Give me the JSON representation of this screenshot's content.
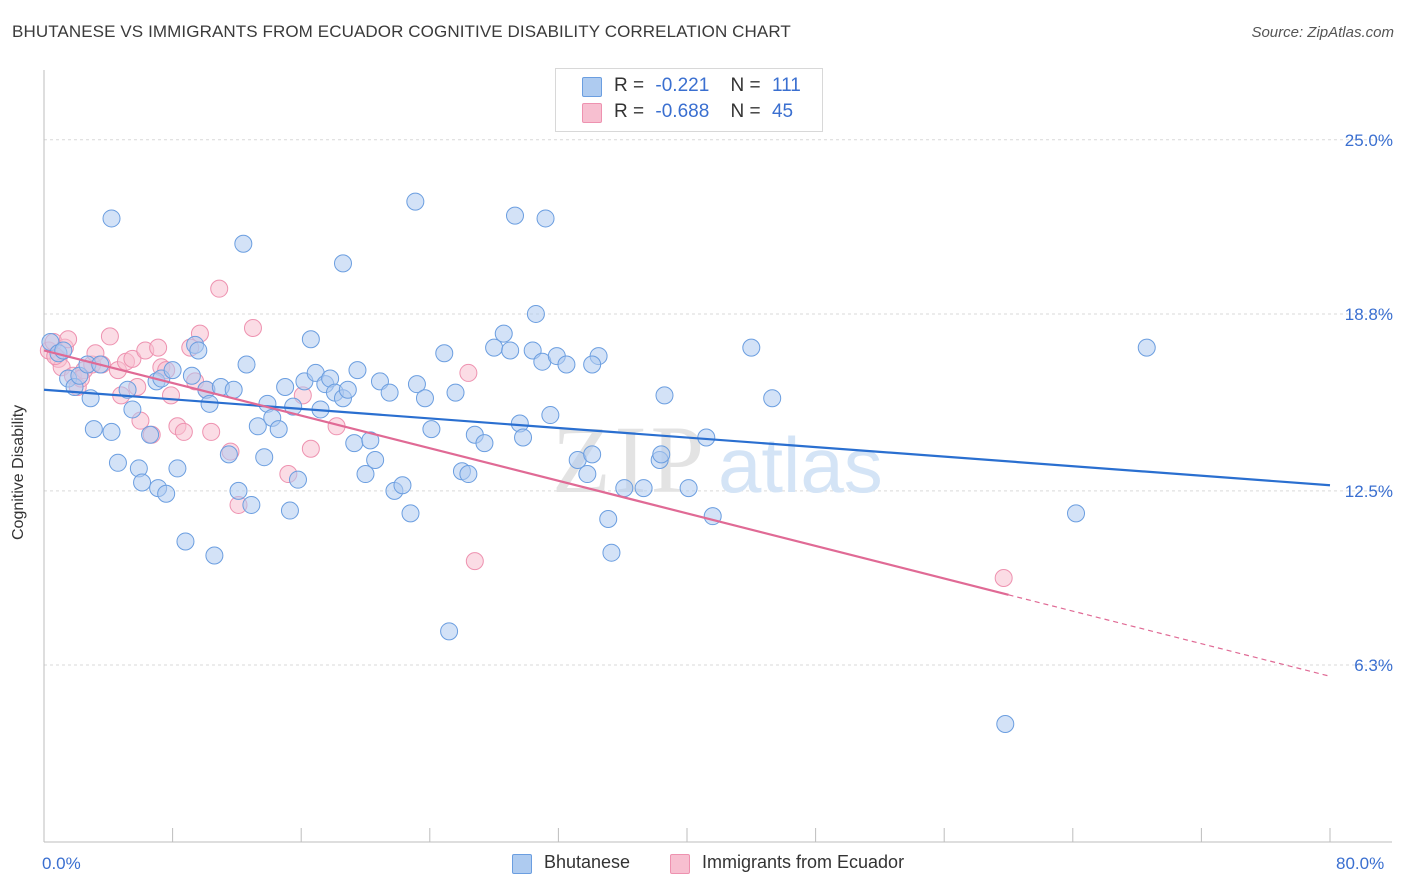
{
  "title": "BHUTANESE VS IMMIGRANTS FROM ECUADOR COGNITIVE DISABILITY CORRELATION CHART",
  "source": "Source: ZipAtlas.com",
  "watermark": {
    "zip": "ZIP",
    "atlas": "atlas"
  },
  "colors": {
    "bhutanese_fill": "#aecbf0",
    "bhutanese_stroke": "#6b9ee0",
    "bhutanese_line": "#2a6fd0",
    "ecuador_fill": "#f7bfd0",
    "ecuador_stroke": "#ee92b0",
    "ecuador_line": "#e06a95",
    "grid": "#d9d9d9",
    "tick_label": "#3a6fd0"
  },
  "legend": {
    "rows": [
      {
        "r_label": "R =",
        "r_value": "-0.221",
        "n_label": "N =",
        "n_value": "111"
      },
      {
        "r_label": "R =",
        "r_value": "-0.688",
        "n_label": "N =",
        "n_value": "45"
      }
    ]
  },
  "bottom_legend": [
    "Bhutanese",
    "Immigrants from Ecuador"
  ],
  "axes": {
    "ylabel": "Cognitive Disability",
    "x_min_label": "0.0%",
    "x_max_label": "80.0%",
    "y_tick_labels": [
      "25.0%",
      "18.8%",
      "12.5%",
      "6.3%"
    ]
  },
  "chart_data": {
    "type": "scatter",
    "title": "BHUTANESE VS IMMIGRANTS FROM ECUADOR COGNITIVE DISABILITY CORRELATION CHART",
    "xlabel": "",
    "ylabel": "Cognitive Disability",
    "xlim": [
      0,
      80
    ],
    "ylim": [
      0,
      27.2
    ],
    "y_ticks": [
      25.0,
      18.8,
      12.5,
      6.3
    ],
    "grid": true,
    "legend_position": "top-center",
    "series": [
      {
        "name": "Bhutanese",
        "r": -0.221,
        "n": 111,
        "trend": {
          "x0": 0,
          "y0": 16.1,
          "x1": 80,
          "y1": 12.7
        },
        "points": [
          [
            0.4,
            17.8
          ],
          [
            0.9,
            17.4
          ],
          [
            1.2,
            17.5
          ],
          [
            1.5,
            16.5
          ],
          [
            1.9,
            16.2
          ],
          [
            2.2,
            16.6
          ],
          [
            2.7,
            17.0
          ],
          [
            2.9,
            15.8
          ],
          [
            3.1,
            14.7
          ],
          [
            3.5,
            17.0
          ],
          [
            4.2,
            14.6
          ],
          [
            4.6,
            13.5
          ],
          [
            5.2,
            16.1
          ],
          [
            5.5,
            15.4
          ],
          [
            5.9,
            13.3
          ],
          [
            6.1,
            12.8
          ],
          [
            6.6,
            14.5
          ],
          [
            7.0,
            16.4
          ],
          [
            7.1,
            12.6
          ],
          [
            7.3,
            16.5
          ],
          [
            7.6,
            12.4
          ],
          [
            8.0,
            16.8
          ],
          [
            8.3,
            13.3
          ],
          [
            8.8,
            10.7
          ],
          [
            9.2,
            16.6
          ],
          [
            9.4,
            17.7
          ],
          [
            9.6,
            17.5
          ],
          [
            10.1,
            16.1
          ],
          [
            10.3,
            15.6
          ],
          [
            10.6,
            10.2
          ],
          [
            11.0,
            16.2
          ],
          [
            11.5,
            13.8
          ],
          [
            11.8,
            16.1
          ],
          [
            12.1,
            12.5
          ],
          [
            12.6,
            17.0
          ],
          [
            12.9,
            12.0
          ],
          [
            13.3,
            14.8
          ],
          [
            13.7,
            13.7
          ],
          [
            13.9,
            15.6
          ],
          [
            14.2,
            15.1
          ],
          [
            14.6,
            14.7
          ],
          [
            15.0,
            16.2
          ],
          [
            15.3,
            11.8
          ],
          [
            15.5,
            15.5
          ],
          [
            15.8,
            12.9
          ],
          [
            16.2,
            16.4
          ],
          [
            16.6,
            17.9
          ],
          [
            16.9,
            16.7
          ],
          [
            17.2,
            15.4
          ],
          [
            17.5,
            16.3
          ],
          [
            17.8,
            16.5
          ],
          [
            18.1,
            16.0
          ],
          [
            18.6,
            15.8
          ],
          [
            18.9,
            16.1
          ],
          [
            19.3,
            14.2
          ],
          [
            19.5,
            16.8
          ],
          [
            20.0,
            13.1
          ],
          [
            20.3,
            14.3
          ],
          [
            20.6,
            13.6
          ],
          [
            20.9,
            16.4
          ],
          [
            21.5,
            16.0
          ],
          [
            21.8,
            12.5
          ],
          [
            22.3,
            12.7
          ],
          [
            22.8,
            11.7
          ],
          [
            23.2,
            16.3
          ],
          [
            23.7,
            15.8
          ],
          [
            24.1,
            14.7
          ],
          [
            24.9,
            17.4
          ],
          [
            25.6,
            16.0
          ],
          [
            26.0,
            13.2
          ],
          [
            26.4,
            13.1
          ],
          [
            26.8,
            14.5
          ],
          [
            27.4,
            14.2
          ],
          [
            28.0,
            17.6
          ],
          [
            28.6,
            18.1
          ],
          [
            29.0,
            17.5
          ],
          [
            29.3,
            22.3
          ],
          [
            29.6,
            14.9
          ],
          [
            29.8,
            14.4
          ],
          [
            30.4,
            17.5
          ],
          [
            30.6,
            18.8
          ],
          [
            31.0,
            17.1
          ],
          [
            31.5,
            15.2
          ],
          [
            31.9,
            17.3
          ],
          [
            32.5,
            17.0
          ],
          [
            33.2,
            13.6
          ],
          [
            33.8,
            13.1
          ],
          [
            34.1,
            13.8
          ],
          [
            34.5,
            17.3
          ],
          [
            35.1,
            11.5
          ],
          [
            35.3,
            10.3
          ],
          [
            36.1,
            12.6
          ],
          [
            37.3,
            12.6
          ],
          [
            38.3,
            13.6
          ],
          [
            38.6,
            15.9
          ],
          [
            40.1,
            12.6
          ],
          [
            41.6,
            11.6
          ],
          [
            41.2,
            14.4
          ],
          [
            44.0,
            17.6
          ],
          [
            45.3,
            15.8
          ],
          [
            4.2,
            22.2
          ],
          [
            12.4,
            21.3
          ],
          [
            18.6,
            20.6
          ],
          [
            23.1,
            22.8
          ],
          [
            31.2,
            22.2
          ],
          [
            25.2,
            7.5
          ],
          [
            38.4,
            13.8
          ],
          [
            59.8,
            4.2
          ],
          [
            64.2,
            11.7
          ],
          [
            68.6,
            17.6
          ],
          [
            34.1,
            17.0
          ]
        ]
      },
      {
        "name": "Immigrants from Ecuador",
        "r": -0.688,
        "n": 45,
        "trend": {
          "x0": 0,
          "y0": 17.5,
          "x1": 60,
          "y1": 8.8,
          "dashed_to_x": 80,
          "dashed_to_y": 5.9
        },
        "points": [
          [
            0.3,
            17.5
          ],
          [
            0.6,
            17.8
          ],
          [
            0.9,
            17.2
          ],
          [
            1.1,
            16.9
          ],
          [
            1.3,
            17.6
          ],
          [
            1.5,
            17.9
          ],
          [
            1.8,
            16.6
          ],
          [
            2.1,
            16.2
          ],
          [
            2.5,
            16.8
          ],
          [
            3.0,
            17.0
          ],
          [
            3.2,
            17.4
          ],
          [
            3.6,
            17.0
          ],
          [
            4.1,
            18.0
          ],
          [
            4.6,
            16.8
          ],
          [
            4.8,
            15.9
          ],
          [
            5.1,
            17.1
          ],
          [
            5.5,
            17.2
          ],
          [
            5.8,
            16.2
          ],
          [
            6.0,
            15.0
          ],
          [
            6.3,
            17.5
          ],
          [
            6.7,
            14.5
          ],
          [
            7.1,
            17.6
          ],
          [
            7.3,
            16.9
          ],
          [
            7.6,
            16.8
          ],
          [
            7.9,
            15.9
          ],
          [
            8.3,
            14.8
          ],
          [
            8.7,
            14.6
          ],
          [
            9.1,
            17.6
          ],
          [
            9.4,
            16.4
          ],
          [
            9.7,
            18.1
          ],
          [
            10.1,
            16.1
          ],
          [
            10.4,
            14.6
          ],
          [
            10.9,
            19.7
          ],
          [
            11.6,
            13.9
          ],
          [
            12.1,
            12.0
          ],
          [
            13.0,
            18.3
          ],
          [
            15.2,
            13.1
          ],
          [
            16.1,
            15.9
          ],
          [
            16.6,
            14.0
          ],
          [
            18.2,
            14.8
          ],
          [
            26.4,
            16.7
          ],
          [
            26.8,
            10.0
          ],
          [
            59.7,
            9.4
          ],
          [
            0.7,
            17.3
          ],
          [
            2.3,
            16.5
          ]
        ]
      }
    ]
  }
}
